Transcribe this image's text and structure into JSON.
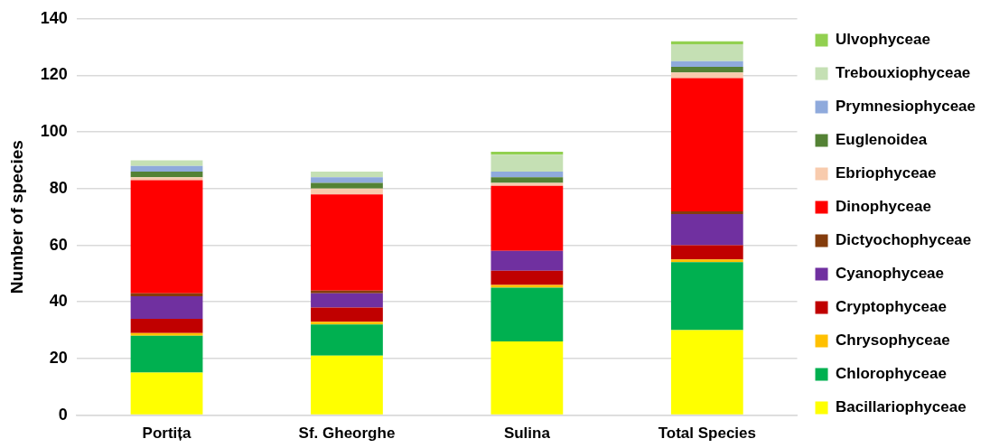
{
  "chart_data": {
    "type": "bar",
    "ylabel": "Number of species",
    "categories": [
      "Portița",
      "Sf. Gheorghe",
      "Sulina",
      "Total Species"
    ],
    "stacked": true,
    "ylim": [
      0,
      140
    ],
    "yticks": [
      0,
      20,
      40,
      60,
      80,
      100,
      120,
      140
    ],
    "grid": "y",
    "legend": "right",
    "series": [
      {
        "name": "Bacillariophyceae",
        "color": "#ffff00",
        "values": [
          15,
          21,
          26,
          30
        ]
      },
      {
        "name": "Chlorophyceae",
        "color": "#00b050",
        "values": [
          13,
          11,
          19,
          24
        ]
      },
      {
        "name": "Chrysophyceae",
        "color": "#ffc000",
        "values": [
          1,
          1,
          1,
          1
        ]
      },
      {
        "name": "Cryptophyceae",
        "color": "#c00000",
        "values": [
          5,
          5,
          5,
          5
        ]
      },
      {
        "name": "Cyanophyceae",
        "color": "#7030a0",
        "values": [
          8,
          5,
          7,
          11
        ]
      },
      {
        "name": "Dictyochophyceae",
        "color": "#843c0c",
        "values": [
          1,
          1,
          0,
          1
        ]
      },
      {
        "name": "Dinophyceae",
        "color": "#ff0000",
        "values": [
          40,
          34,
          23,
          47
        ]
      },
      {
        "name": "Ebriophyceae",
        "color": "#f8cbad",
        "values": [
          1,
          2,
          1,
          2
        ]
      },
      {
        "name": "Euglenoidea",
        "color": "#548235",
        "values": [
          2,
          2,
          2,
          2
        ]
      },
      {
        "name": "Prymnesiophyceae",
        "color": "#8faadc",
        "values": [
          2,
          2,
          2,
          2
        ]
      },
      {
        "name": "Trebouxiophyceae",
        "color": "#c5e0b4",
        "values": [
          2,
          2,
          6,
          6
        ]
      },
      {
        "name": "Ulvophyceae",
        "color": "#92d050",
        "values": [
          0,
          0,
          1,
          1
        ]
      }
    ]
  }
}
